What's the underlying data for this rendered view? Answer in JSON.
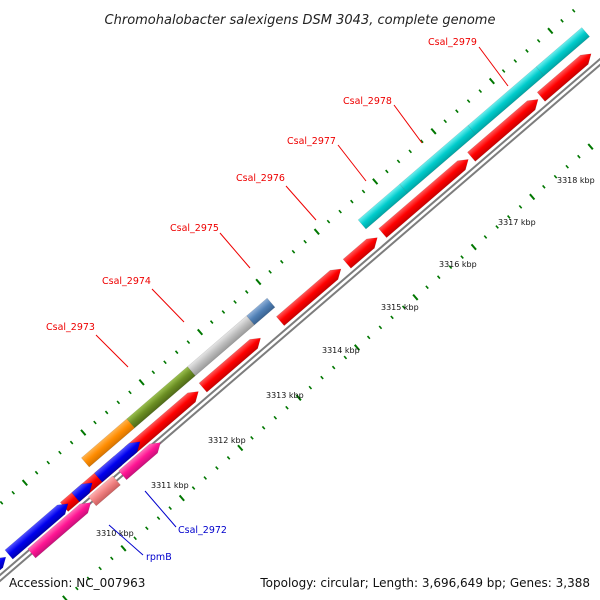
{
  "title": "Chromohalobacter salexigens DSM 3043, complete genome",
  "footer": {
    "accession": "Accession: NC_007963",
    "topology": "Topology: circular; Length: 3,696,649 bp; Genes: 3,388"
  },
  "colors": {
    "red_gene": "#ff0000",
    "red_label": "#ee0000",
    "blue_label": "#0000cc",
    "cyan": "#00cccc",
    "gray": "#bbbbbb",
    "steel_blue": "#4f7fb5",
    "olive": "#6b8e23",
    "orange": "#ff8c00",
    "blue": "#0000ee",
    "magenta": "#ff1493",
    "salmon": "#f08080",
    "tick_green": "#007700"
  },
  "kbp_labels": [
    "3310 kbp",
    "3311 kbp",
    "3312 kbp",
    "3313 kbp",
    "3314 kbp",
    "3315 kbp",
    "3316 kbp",
    "3317 kbp",
    "3318 kbp"
  ],
  "gene_labels_red": [
    "Csal_2973",
    "Csal_2974",
    "Csal_2975",
    "Csal_2976",
    "Csal_2977",
    "Csal_2978",
    "Csal_2979"
  ],
  "gene_labels_blue": [
    "Csal_2972",
    "rpmB"
  ]
}
